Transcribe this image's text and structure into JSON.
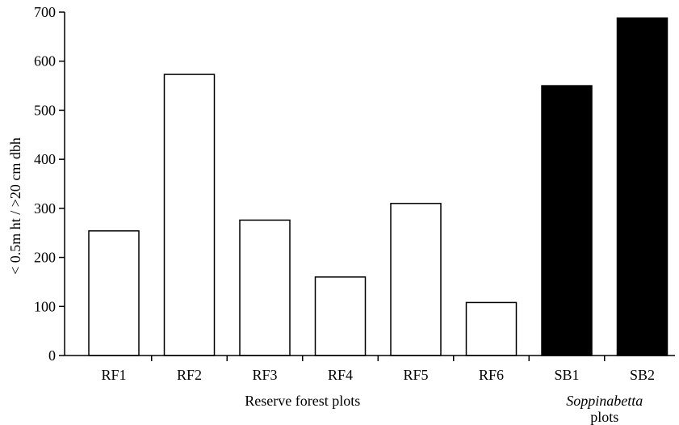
{
  "chart_data": {
    "type": "bar",
    "categories": [
      "RF1",
      "RF2",
      "RF3",
      "RF4",
      "RF5",
      "RF6",
      "SB1",
      "SB2"
    ],
    "values": [
      254,
      573,
      276,
      160,
      310,
      108,
      550,
      688
    ],
    "bar_fill": [
      "white",
      "white",
      "white",
      "white",
      "white",
      "white",
      "black",
      "black"
    ],
    "ylabel": "< 0.5m ht / >20 cm dbh",
    "xlabel": "",
    "ylim": [
      0,
      700
    ],
    "yticks": [
      0,
      100,
      200,
      300,
      400,
      500,
      600,
      700
    ],
    "grid": false,
    "groups": [
      {
        "label": "Reserve forest plots",
        "categories": [
          "RF1",
          "RF2",
          "RF3",
          "RF4",
          "RF5",
          "RF6"
        ]
      },
      {
        "label_italic": "Soppinabetta",
        "label_rest": "plots",
        "categories": [
          "SB1",
          "SB2"
        ]
      }
    ]
  }
}
